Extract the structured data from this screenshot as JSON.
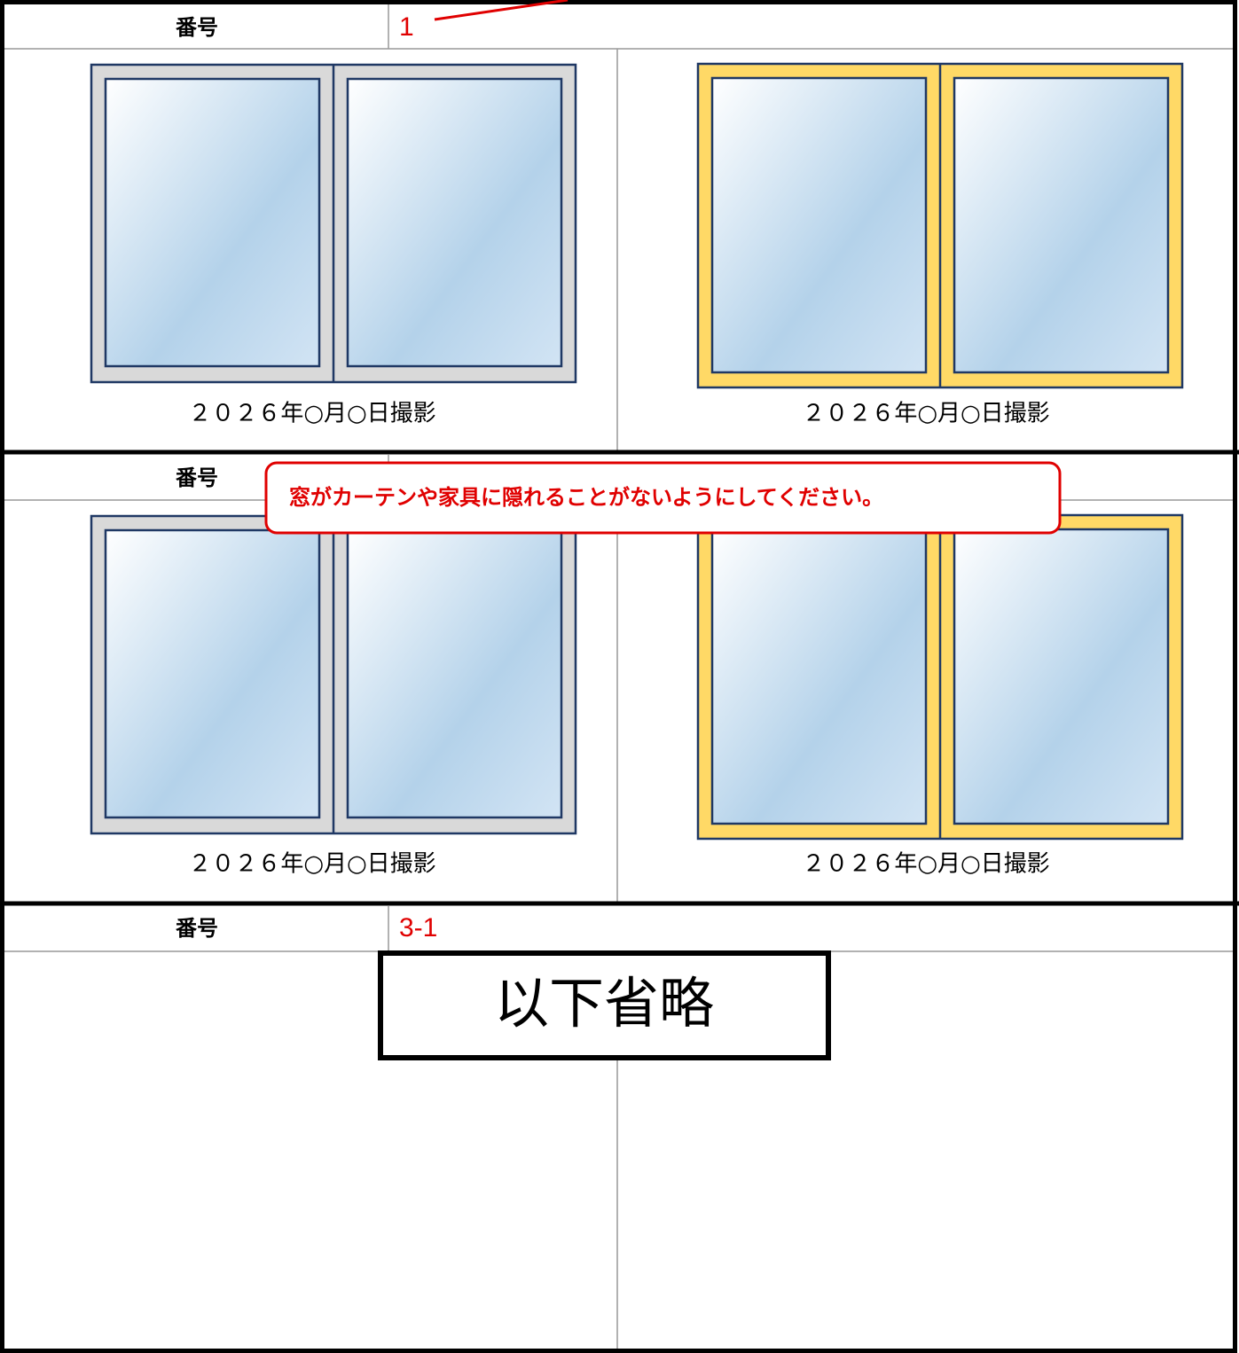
{
  "sections": [
    {
      "label": "番号",
      "number": "1",
      "photos": [
        {
          "caption": "２０２６年○月○日撮影"
        },
        {
          "caption": "２０２６年○月○日撮影"
        }
      ]
    },
    {
      "label": "番号",
      "photos": [
        {
          "caption": "２０２６年○月○日撮影"
        },
        {
          "caption": "２０２６年○月○日撮影"
        }
      ]
    },
    {
      "label": "番号",
      "number": "3-1"
    }
  ],
  "callout": "窓がカーテンや家具に隠れることがないようにしてください。",
  "omitted": "以下省略"
}
